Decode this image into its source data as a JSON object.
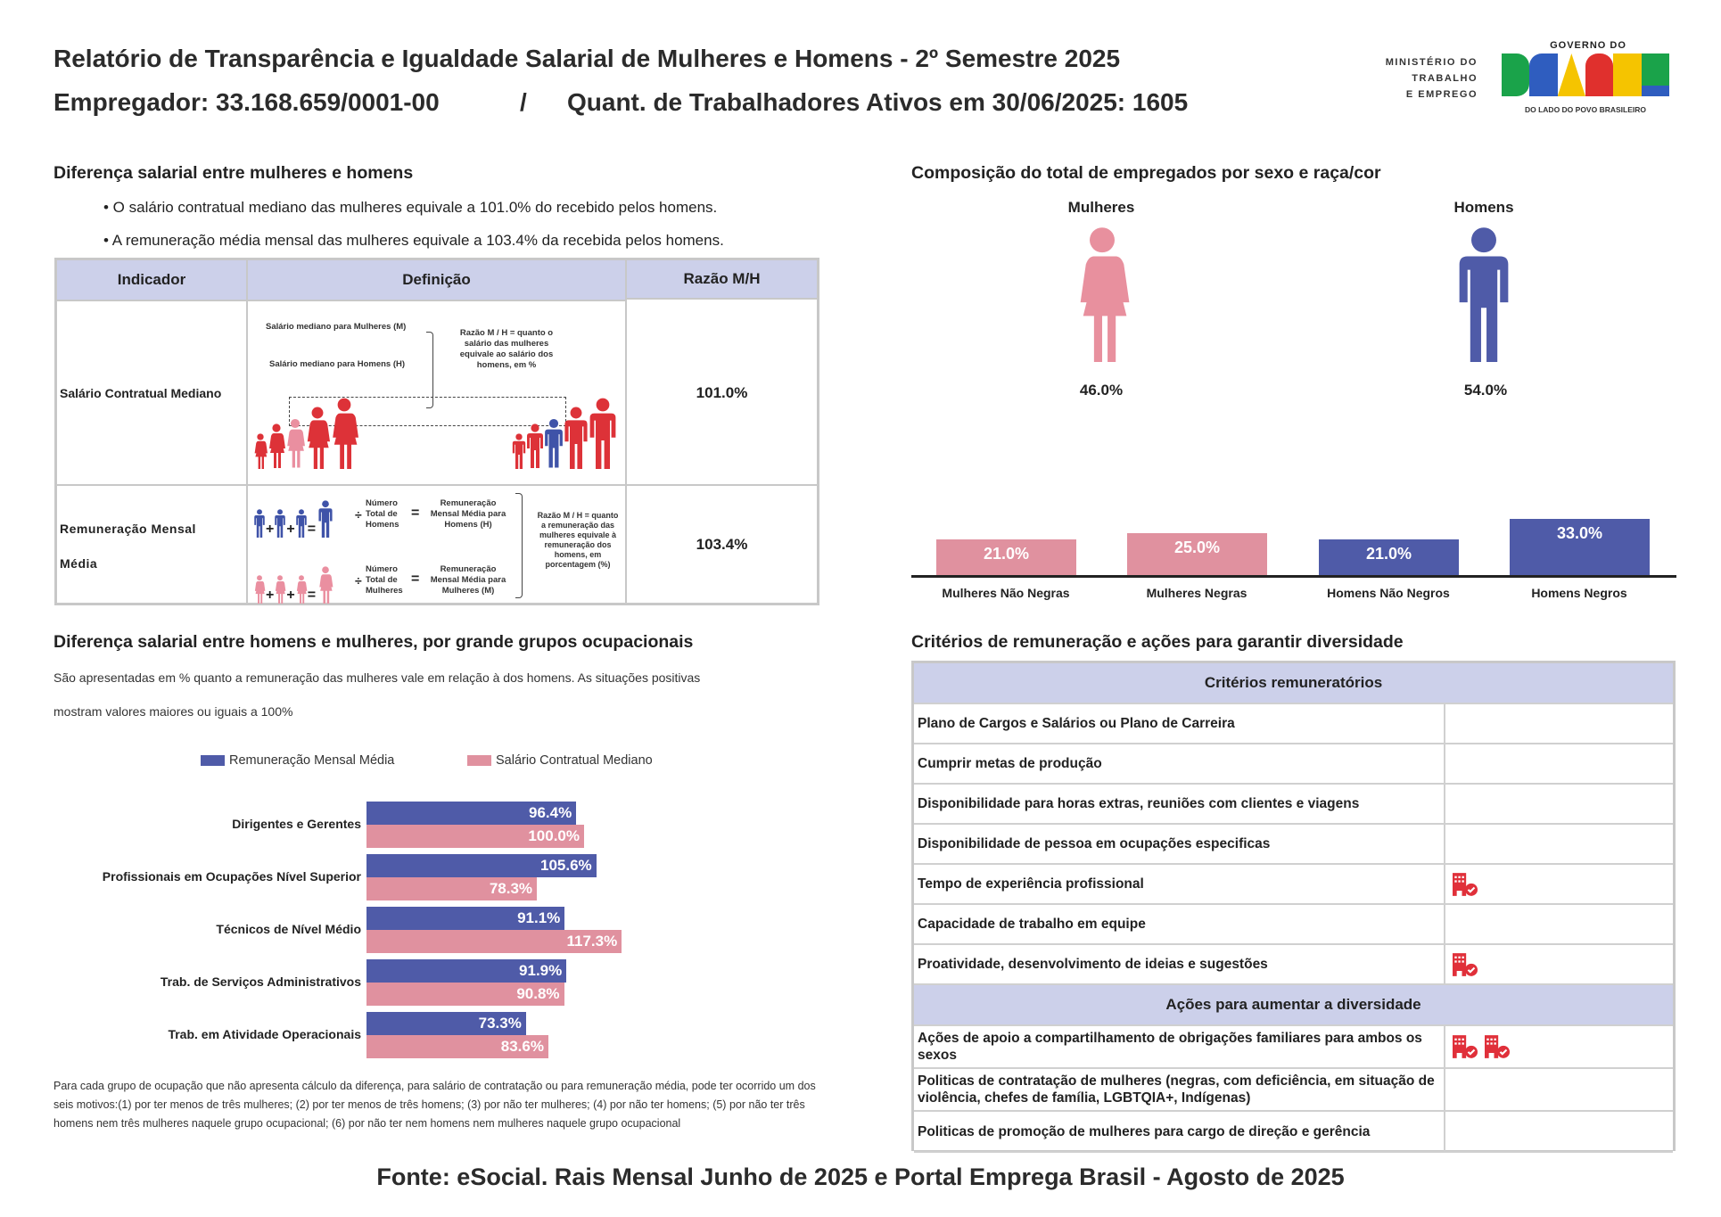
{
  "header": {
    "title": "Relatório de Transparência e Igualdade Salarial de Mulheres e Homens - 2º Semestre 2025",
    "employer": "Empregador: 33.168.659/0001-00",
    "separator": "/",
    "workers": "Quant. de Trabalhadores Ativos em 30/06/2025: 1605"
  },
  "logo": {
    "ministry": [
      "MINISTÉRIO DO",
      "TRABALHO",
      "E EMPREGO"
    ],
    "gov_top": "GOVERNO DO",
    "gov_word": "BRASIL",
    "gov_bottom": "DO LADO DO POVO BRASILEIRO"
  },
  "salary_gap": {
    "title": "Diferença salarial entre mulheres e homens",
    "bullets": [
      "• O salário contratual mediano das mulheres equivale a 101.0% do recebido pelos homens.",
      "• A remuneração média mensal das mulheres equivale a 103.4% da recebida pelos homens."
    ],
    "table": {
      "headers": [
        "Indicador",
        "Definição",
        "Razão M/H"
      ],
      "rows": [
        {
          "indicator": "Salário Contratual Mediano",
          "ratio": "101.0%",
          "def": {
            "m": "Salário mediano para Mulheres (M)",
            "h": "Salário mediano para Homens (H)",
            "ratio_text": [
              "Razão M / H = quanto o",
              "salário das mulheres",
              "equivale ao salário dos",
              "homens, em %"
            ]
          }
        },
        {
          "indicator_l1": "Remuneração Mensal",
          "indicator_l2": "Média",
          "ratio": "103.4%",
          "def": {
            "div": "÷",
            "eq": "=",
            "total_h": [
              "Número",
              "Total de",
              "Homens"
            ],
            "total_m": [
              "Número",
              "Total de",
              "Mulheres"
            ],
            "rem_h": [
              "Remuneração",
              "Mensal Média para",
              "Homens (H)"
            ],
            "rem_m": [
              "Remuneração",
              "Mensal Média para",
              "Mulheres (M)"
            ],
            "ratio_text": [
              "Razão M / H = quanto",
              "a remuneração das",
              "mulheres equivale à",
              "remuneração dos",
              "homens, em",
              "porcentagem (%)"
            ]
          }
        }
      ]
    }
  },
  "composition": {
    "title": "Composição do total de empregados por sexo e raça/cor",
    "women_label": "Mulheres",
    "men_label": "Homens",
    "women_pct": "46.0%",
    "men_pct": "54.0%"
  },
  "occupational": {
    "title": "Diferença salarial entre homens e mulheres, por grande grupos ocupacionais",
    "subtitle_l1": "São apresentadas em % quanto a remuneração das mulheres vale em relação à dos homens. As situações positivas",
    "subtitle_l2": "mostram valores maiores ou iguais a 100%",
    "footnote": "Para cada grupo de ocupação que não apresenta cálculo da diferença, para salário de contratação ou para remuneração média, pode ter ocorrido um dos seis motivos:(1) por ter menos de três mulheres; (2) por ter menos de três homens; (3) por não ter mulheres; (4) por não ter homens; (5) por não ter três homens nem três mulheres naquele grupo ocupacional; (6) por não ter nem homens nem mulheres naquele grupo ocupacional"
  },
  "chart_data": [
    {
      "type": "bar",
      "orientation": "horizontal",
      "categories": [
        "Dirigentes e Gerentes",
        "Profissionais em Ocupações Nível Superior",
        "Técnicos de Nível Médio",
        "Trab. de Serviços Administrativos",
        "Trab. em Atividade Operacionais"
      ],
      "series": [
        {
          "name": "Remuneração Mensal Média",
          "values": [
            96.4,
            105.6,
            91.1,
            91.9,
            73.3
          ],
          "labels": [
            "96.4%",
            "105.6%",
            "91.1%",
            "91.9%",
            "73.3%"
          ],
          "color": "#4f5ba8"
        },
        {
          "name": "Salário Contratual Mediano",
          "values": [
            100.0,
            78.3,
            117.3,
            90.8,
            83.6
          ],
          "labels": [
            "100.0%",
            "78.3%",
            "117.3%",
            "90.8%",
            "83.6%"
          ],
          "color": "#e0919f"
        }
      ],
      "legend": "top",
      "grid": false
    },
    {
      "type": "bar",
      "categories": [
        "Mulheres Não Negras",
        "Mulheres Negras",
        "Homens Não Negros",
        "Homens Negros"
      ],
      "values": [
        21.0,
        25.0,
        21.0,
        33.0
      ],
      "labels": [
        "21.0%",
        "25.0%",
        "21.0%",
        "33.0%"
      ],
      "colors": [
        "#e0919f",
        "#e0919f",
        "#4f5ba8",
        "#4f5ba8"
      ],
      "grid": false
    }
  ],
  "criteria": {
    "title": "Critérios de remuneração e ações para garantir diversidade",
    "header1": "Critérios remuneratórios",
    "rows1": [
      {
        "label": "Plano de Cargos e Salários ou Plano de Carreira",
        "icons": 0
      },
      {
        "label": "Cumprir metas de produção",
        "icons": 0
      },
      {
        "label": "Disponibilidade para horas extras, reuniões com clientes e viagens",
        "icons": 0
      },
      {
        "label": "Disponibilidade de pessoa em ocupações especificas",
        "icons": 0
      },
      {
        "label": "Tempo de experiência profissional",
        "icons": 1
      },
      {
        "label": "Capacidade de trabalho em equipe",
        "icons": 0
      },
      {
        "label": "Proatividade, desenvolvimento de ideias e sugestões",
        "icons": 1
      }
    ],
    "header2": "Ações para aumentar a diversidade",
    "rows2": [
      {
        "label": "Ações de apoio a compartilhamento de obrigações familiares para ambos os sexos",
        "icons": 2
      },
      {
        "label": "Politicas de contratação de mulheres (negras, com deficiência, em situação de violência, chefes de família, LGBTQIA+, Indígenas)",
        "icons": 0
      },
      {
        "label": "Politicas de promoção de mulheres para cargo de direção e gerência",
        "icons": 0
      }
    ],
    "icon_name": "building-check-icon",
    "icon_color": "#e0303a"
  },
  "source": "Fonte: eSocial. Rais Mensal Junho de 2025 e Portal Emprega Brasil - Agosto de 2025"
}
